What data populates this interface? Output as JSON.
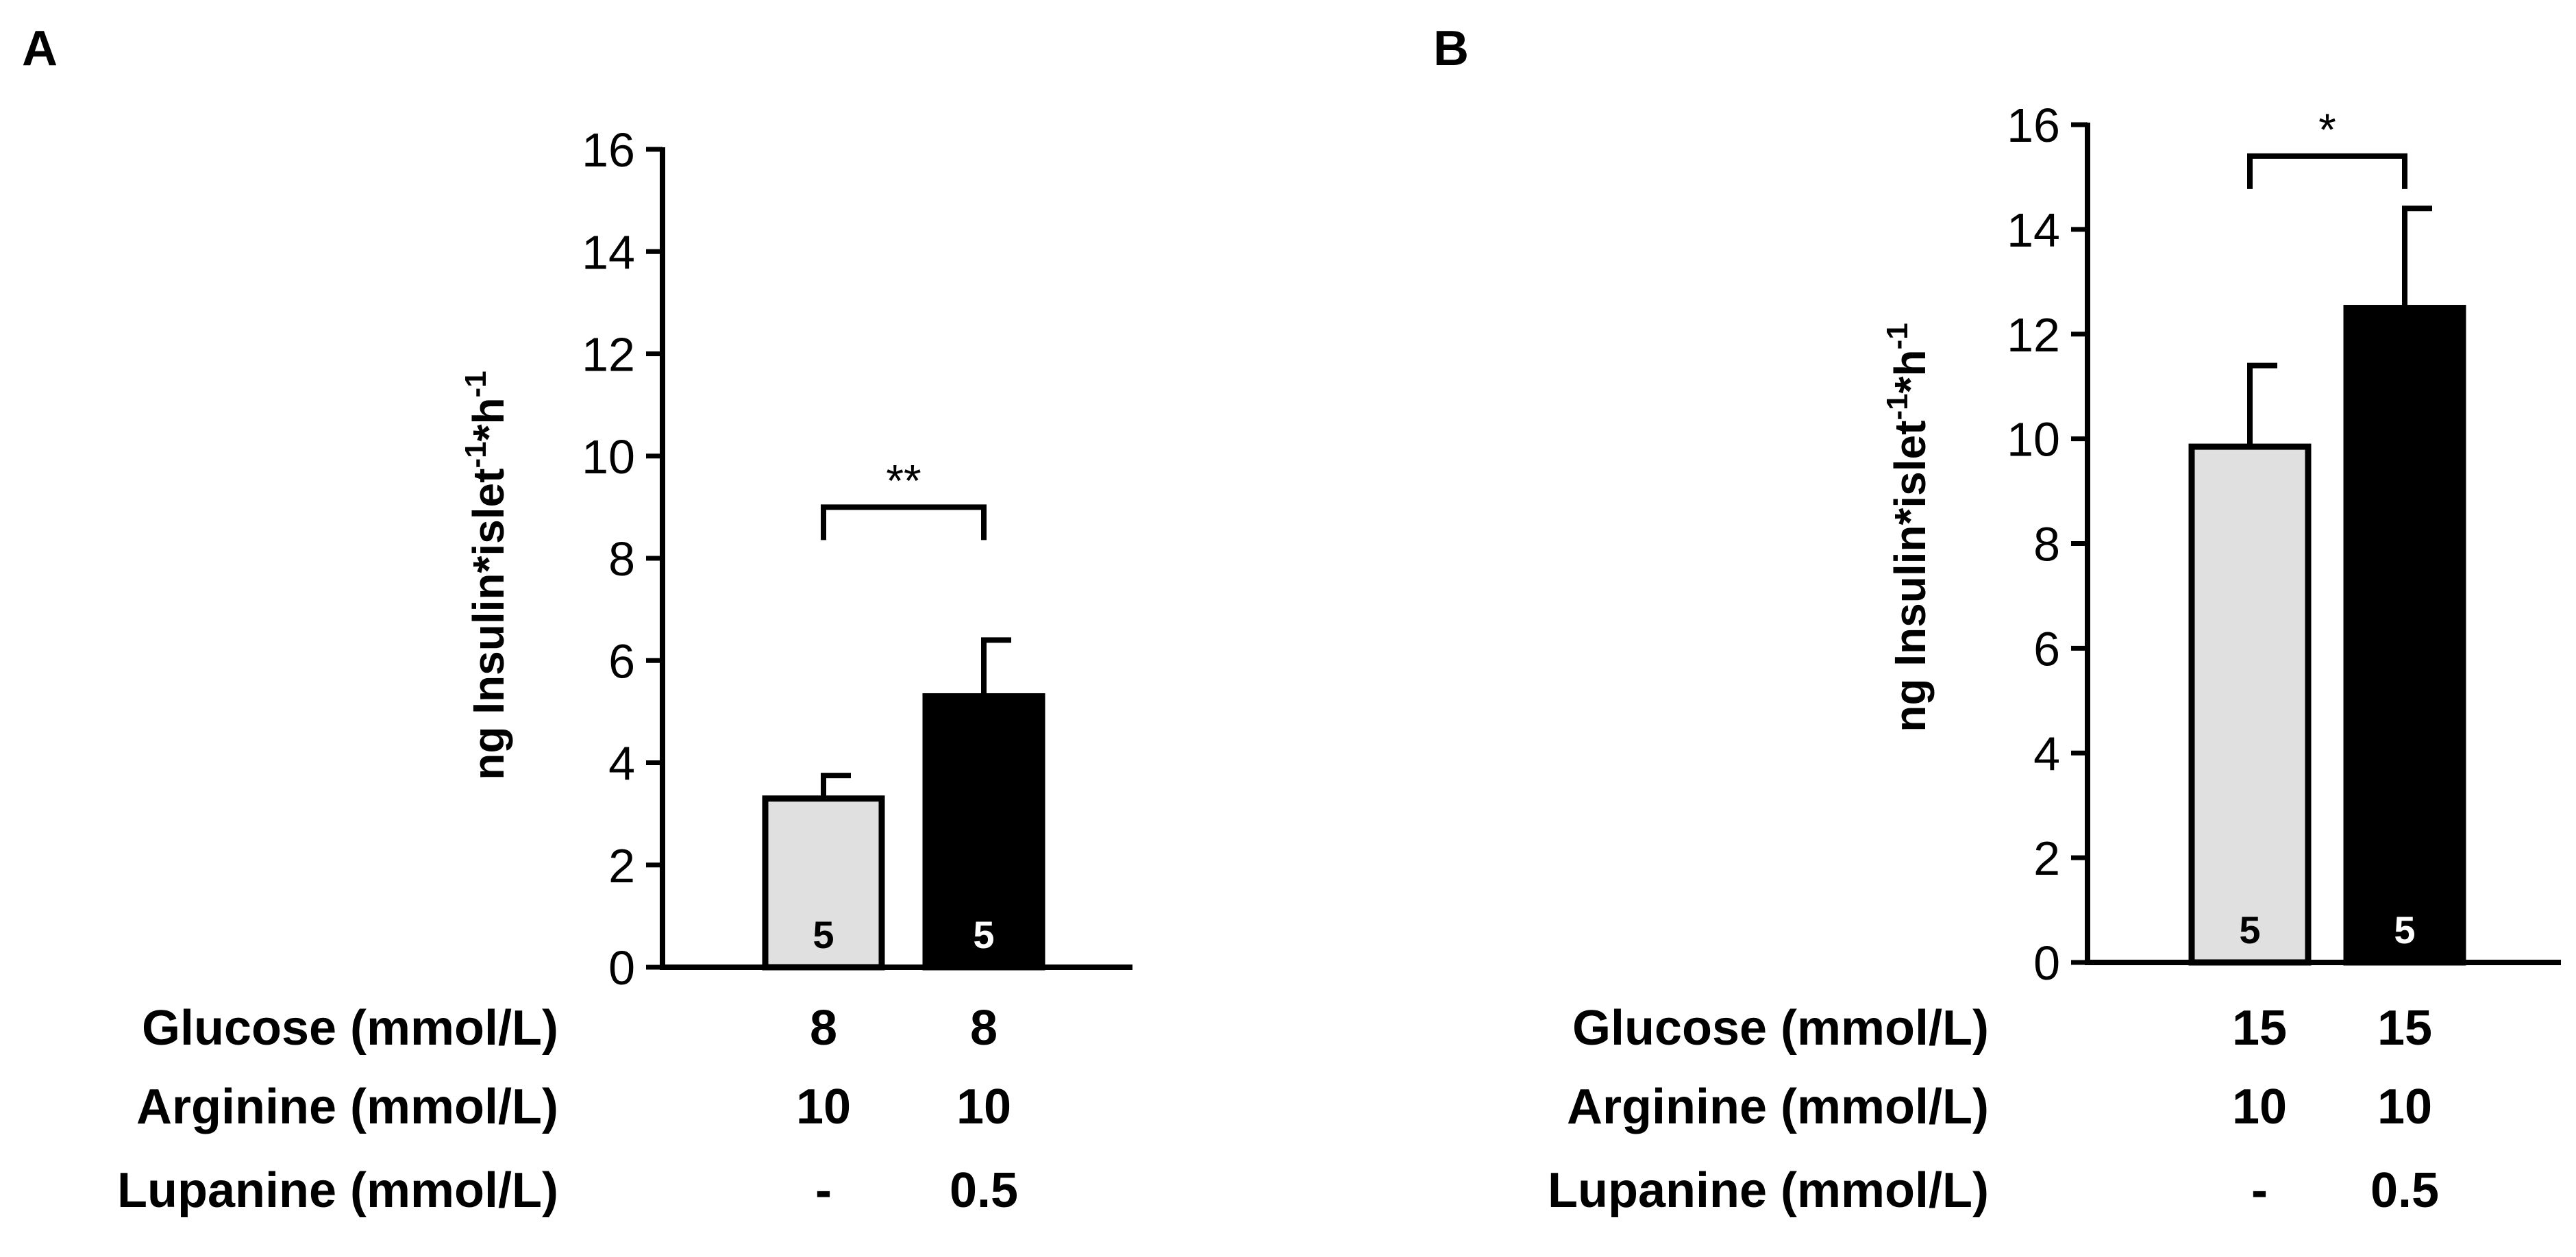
{
  "chart_data": [
    {
      "panel_label": "A",
      "type": "bar",
      "ylabel": {
        "base": "ng Insulin*islet",
        "sup1": "-1",
        "mid": "*h",
        "sup2": "-1"
      },
      "ylim": [
        0,
        16
      ],
      "yticks": [
        0,
        2,
        4,
        6,
        8,
        10,
        12,
        14,
        16
      ],
      "bars": [
        {
          "value": 3.3,
          "error": 0.45,
          "n": "5",
          "color": "#e0e0e0",
          "n_color": "#000000"
        },
        {
          "value": 5.3,
          "error": 1.1,
          "n": "5",
          "color": "#000000",
          "n_color": "#ffffff"
        }
      ],
      "significance": {
        "label": "**",
        "bracket_y": 9.0,
        "from": 0,
        "to": 1
      },
      "conditions": [
        {
          "label": "Glucose (mmol/L)",
          "values": [
            "8",
            "8"
          ]
        },
        {
          "label": "Arginine (mmol/L)",
          "values": [
            "10",
            "10"
          ]
        },
        {
          "label": "Lupanine (mmol/L)",
          "values": [
            "-",
            "0.5"
          ]
        }
      ]
    },
    {
      "panel_label": "B",
      "type": "bar",
      "ylabel": {
        "base": "ng Insulin*islet",
        "sup1": "-1",
        "mid": "*h",
        "sup2": "-1"
      },
      "ylim": [
        0,
        16
      ],
      "yticks": [
        0,
        2,
        4,
        6,
        8,
        10,
        12,
        14,
        16
      ],
      "bars": [
        {
          "value": 9.85,
          "error": 1.55,
          "n": "5",
          "color": "#e0e0e0",
          "n_color": "#000000"
        },
        {
          "value": 12.5,
          "error": 1.9,
          "n": "5",
          "color": "#000000",
          "n_color": "#ffffff"
        }
      ],
      "significance": {
        "label": "*",
        "bracket_y": 15.4,
        "from": 0,
        "to": 1
      },
      "conditions": [
        {
          "label": "Glucose (mmol/L)",
          "values": [
            "15",
            "15"
          ]
        },
        {
          "label": "Arginine (mmol/L)",
          "values": [
            "10",
            "10"
          ]
        },
        {
          "label": "Lupanine (mmol/L)",
          "values": [
            "-",
            "0.5"
          ]
        }
      ]
    }
  ]
}
